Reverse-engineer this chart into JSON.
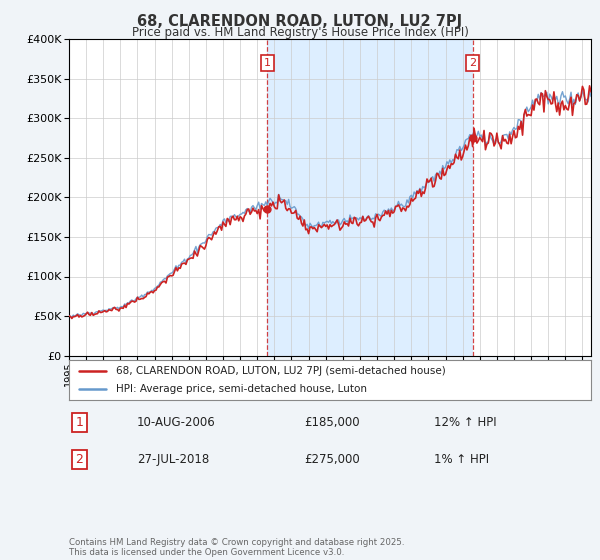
{
  "title1": "68, CLARENDON ROAD, LUTON, LU2 7PJ",
  "title2": "Price paid vs. HM Land Registry's House Price Index (HPI)",
  "legend1": "68, CLARENDON ROAD, LUTON, LU2 7PJ (semi-detached house)",
  "legend2": "HPI: Average price, semi-detached house, Luton",
  "sale1_date": "10-AUG-2006",
  "sale1_price": 185000,
  "sale1_hpi": "12% ↑ HPI",
  "sale2_date": "27-JUL-2018",
  "sale2_price": 275000,
  "sale2_hpi": "1% ↑ HPI",
  "footer": "Contains HM Land Registry data © Crown copyright and database right 2025.\nThis data is licensed under the Open Government Licence v3.0.",
  "line_color_property": "#cc2222",
  "line_color_hpi": "#6699cc",
  "shade_color": "#ddeeff",
  "background_color": "#f0f4f8",
  "plot_bg_color": "#ffffff",
  "ylim": [
    0,
    400000
  ],
  "yticks": [
    0,
    50000,
    100000,
    150000,
    200000,
    250000,
    300000,
    350000,
    400000
  ],
  "sale1_x": 2006.583,
  "sale2_x": 2018.583
}
